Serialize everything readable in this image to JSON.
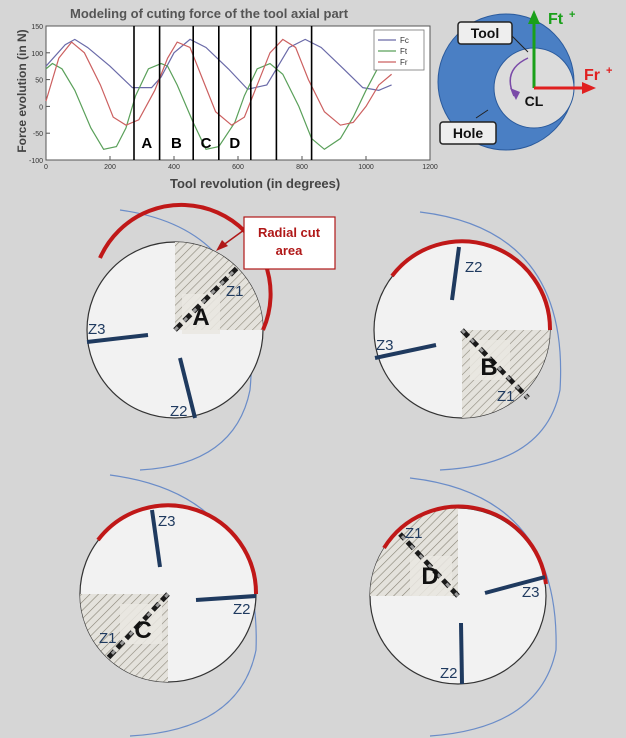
{
  "chart_data": {
    "type": "line",
    "title": "Modeling of cuting force of the tool axial part",
    "xlabel": "Tool revolution (in degrees)",
    "ylabel": "Force evolution (in N)",
    "xlim": [
      0,
      1200
    ],
    "ylim": [
      -100,
      150
    ],
    "x_ticks": [
      "0",
      "200",
      "400",
      "600",
      "800",
      "1000",
      "1200"
    ],
    "y_ticks": [
      "150",
      "100",
      "50",
      "0",
      "-50",
      "-100"
    ],
    "legend_position": "top-right",
    "series": [
      {
        "name": "Fc",
        "color": "#6a6aa8",
        "x": [
          0,
          60,
          90,
          130,
          200,
          270,
          330,
          360,
          400,
          450,
          500,
          570,
          630,
          690,
          720,
          760,
          810,
          860,
          930,
          990,
          1040,
          1080
        ],
        "y": [
          75,
          115,
          125,
          110,
          75,
          35,
          35,
          55,
          100,
          125,
          110,
          70,
          32,
          40,
          70,
          110,
          125,
          110,
          70,
          35,
          30,
          40
        ]
      },
      {
        "name": "Ft",
        "color": "#5aa05a",
        "x": [
          0,
          20,
          50,
          90,
          140,
          180,
          220,
          250,
          280,
          320,
          360,
          380,
          410,
          460,
          500,
          540,
          590,
          620,
          660,
          700,
          740,
          790,
          830,
          870,
          920,
          960,
          1000,
          1040,
          1080
        ],
        "y": [
          70,
          80,
          70,
          30,
          -40,
          -80,
          -75,
          -40,
          20,
          70,
          80,
          75,
          40,
          -30,
          -80,
          -75,
          -30,
          20,
          70,
          80,
          60,
          0,
          -60,
          -80,
          -60,
          -20,
          30,
          75,
          80
        ]
      },
      {
        "name": "Fr",
        "color": "#cc6060",
        "x": [
          0,
          40,
          80,
          120,
          170,
          210,
          250,
          290,
          340,
          380,
          410,
          450,
          490,
          530,
          580,
          620,
          660,
          700,
          740,
          780,
          820,
          870,
          920,
          960,
          1000,
          1040,
          1080
        ],
        "y": [
          10,
          90,
          120,
          100,
          40,
          -20,
          -35,
          -25,
          30,
          90,
          120,
          110,
          50,
          -10,
          -35,
          -20,
          40,
          100,
          125,
          110,
          50,
          -10,
          -35,
          -30,
          0,
          40,
          60
        ]
      }
    ],
    "vertical_markers": [
      {
        "x": 275,
        "label": ""
      },
      {
        "x": 355,
        "label": ""
      },
      {
        "x": 460,
        "label": ""
      },
      {
        "x": 540,
        "label": ""
      },
      {
        "x": 640,
        "label": ""
      },
      {
        "x": 720,
        "label": ""
      },
      {
        "x": 830,
        "label": ""
      }
    ],
    "segment_labels": [
      "A",
      "B",
      "C",
      "D"
    ]
  },
  "tool_diagram": {
    "tool_label": "Tool",
    "hole_label": "Hole",
    "center_label": "CL",
    "ft_label": "Ft",
    "fr_label": "Fr",
    "plus_sign": "+",
    "colors": {
      "hole": "#4a7fc4",
      "tool": "#dcdcdc",
      "ft": "#1aa01a",
      "fr": "#e02020"
    }
  },
  "callout": {
    "text_line1": "Radial cut",
    "text_line2": "area",
    "color": "#b01818"
  },
  "cutters": [
    {
      "id": "A",
      "teeth": [
        "Z1",
        "Z3",
        "Z2"
      ]
    },
    {
      "id": "B",
      "teeth": [
        "Z2",
        "Z3",
        "Z1"
      ]
    },
    {
      "id": "C",
      "teeth": [
        "Z3",
        "Z2",
        "Z1"
      ]
    },
    {
      "id": "D",
      "teeth": [
        "Z1",
        "Z3",
        "Z2"
      ]
    }
  ]
}
